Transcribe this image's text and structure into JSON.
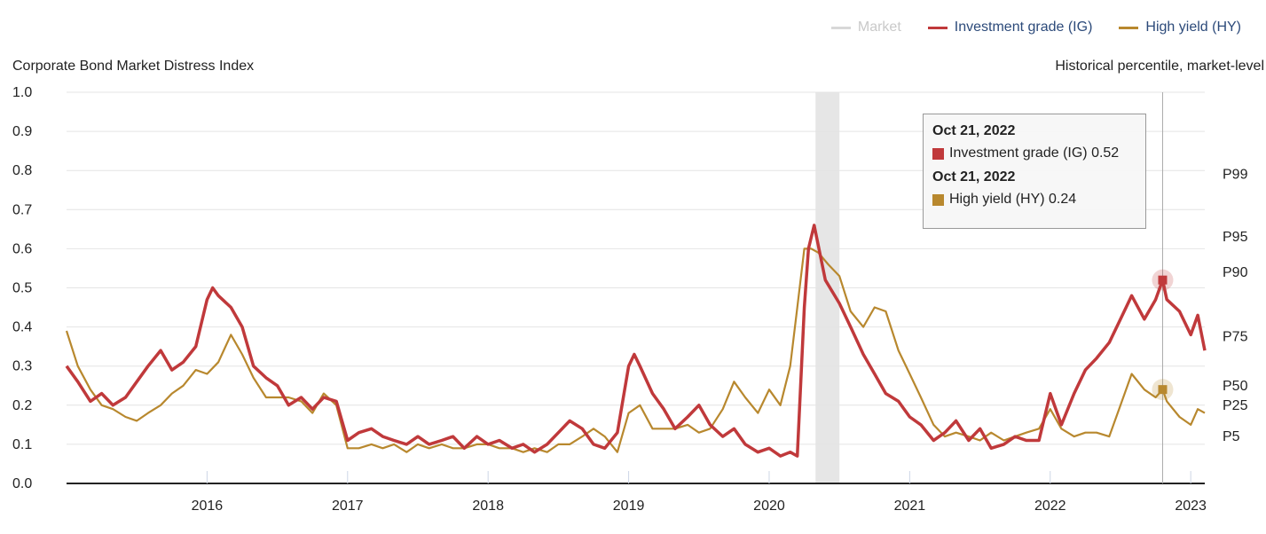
{
  "legend": {
    "market": "Market",
    "ig": "Investment grade (IG)",
    "hy": "High yield (HY)"
  },
  "colors": {
    "ig": "#c0393b",
    "hy": "#b8882e",
    "market": "#d8d8d8",
    "recession": "#e6e6e6"
  },
  "tooltip": {
    "ig_date": "Oct 21, 2022",
    "ig_text": "Investment grade (IG) 0.52",
    "hy_date": "Oct 21, 2022",
    "hy_text": "High yield (HY) 0.24"
  },
  "chart_data": {
    "type": "line",
    "title": "Corporate Bond Market Distress Index",
    "right_axis_title": "Historical percentile, market-level",
    "ylim": [
      0,
      1.0
    ],
    "y_ticks": [
      "0.0",
      "0.1",
      "0.2",
      "0.3",
      "0.4",
      "0.5",
      "0.6",
      "0.7",
      "0.8",
      "0.9",
      "1.0"
    ],
    "xlim": [
      2015.0,
      2023.1
    ],
    "x_ticks": [
      "2016",
      "2017",
      "2018",
      "2019",
      "2020",
      "2021",
      "2022",
      "2023"
    ],
    "percentile_labels": [
      {
        "label": "P99",
        "value": 0.79
      },
      {
        "label": "P95",
        "value": 0.63
      },
      {
        "label": "P90",
        "value": 0.54
      },
      {
        "label": "P75",
        "value": 0.375
      },
      {
        "label": "P50",
        "value": 0.25
      },
      {
        "label": "P25",
        "value": 0.2
      },
      {
        "label": "P5",
        "value": 0.12
      }
    ],
    "shaded_region": [
      2020.33,
      2020.5
    ],
    "hover_x": 2022.8,
    "series": [
      {
        "name": "Investment grade (IG)",
        "x": [
          2015.0,
          2015.08,
          2015.17,
          2015.25,
          2015.33,
          2015.42,
          2015.5,
          2015.58,
          2015.67,
          2015.75,
          2015.83,
          2015.92,
          2016.0,
          2016.04,
          2016.08,
          2016.17,
          2016.25,
          2016.33,
          2016.42,
          2016.5,
          2016.58,
          2016.67,
          2016.75,
          2016.83,
          2016.92,
          2017.0,
          2017.08,
          2017.17,
          2017.25,
          2017.33,
          2017.42,
          2017.5,
          2017.58,
          2017.67,
          2017.75,
          2017.83,
          2017.92,
          2018.0,
          2018.08,
          2018.17,
          2018.25,
          2018.33,
          2018.42,
          2018.5,
          2018.58,
          2018.67,
          2018.75,
          2018.83,
          2018.92,
          2019.0,
          2019.04,
          2019.08,
          2019.17,
          2019.25,
          2019.33,
          2019.42,
          2019.5,
          2019.58,
          2019.67,
          2019.75,
          2019.83,
          2019.92,
          2020.0,
          2020.08,
          2020.15,
          2020.2,
          2020.25,
          2020.28,
          2020.32,
          2020.4,
          2020.5,
          2020.58,
          2020.67,
          2020.75,
          2020.83,
          2020.92,
          2021.0,
          2021.08,
          2021.17,
          2021.25,
          2021.33,
          2021.42,
          2021.5,
          2021.58,
          2021.67,
          2021.75,
          2021.83,
          2021.92,
          2022.0,
          2022.08,
          2022.17,
          2022.25,
          2022.33,
          2022.42,
          2022.5,
          2022.58,
          2022.67,
          2022.75,
          2022.8,
          2022.83,
          2022.92,
          2023.0,
          2023.05,
          2023.1
        ],
        "values": [
          0.3,
          0.26,
          0.21,
          0.23,
          0.2,
          0.22,
          0.26,
          0.3,
          0.34,
          0.29,
          0.31,
          0.35,
          0.47,
          0.5,
          0.48,
          0.45,
          0.4,
          0.3,
          0.27,
          0.25,
          0.2,
          0.22,
          0.19,
          0.22,
          0.21,
          0.11,
          0.13,
          0.14,
          0.12,
          0.11,
          0.1,
          0.12,
          0.1,
          0.11,
          0.12,
          0.09,
          0.12,
          0.1,
          0.11,
          0.09,
          0.1,
          0.08,
          0.1,
          0.13,
          0.16,
          0.14,
          0.1,
          0.09,
          0.13,
          0.3,
          0.33,
          0.3,
          0.23,
          0.19,
          0.14,
          0.17,
          0.2,
          0.15,
          0.12,
          0.14,
          0.1,
          0.08,
          0.09,
          0.07,
          0.08,
          0.07,
          0.45,
          0.6,
          0.66,
          0.52,
          0.46,
          0.4,
          0.33,
          0.28,
          0.23,
          0.21,
          0.17,
          0.15,
          0.11,
          0.13,
          0.16,
          0.11,
          0.14,
          0.09,
          0.1,
          0.12,
          0.11,
          0.11,
          0.23,
          0.15,
          0.23,
          0.29,
          0.32,
          0.36,
          0.42,
          0.48,
          0.42,
          0.47,
          0.52,
          0.47,
          0.44,
          0.38,
          0.43,
          0.34
        ]
      },
      {
        "name": "High yield (HY)",
        "x": [
          2015.0,
          2015.08,
          2015.17,
          2015.25,
          2015.33,
          2015.42,
          2015.5,
          2015.58,
          2015.67,
          2015.75,
          2015.83,
          2015.92,
          2016.0,
          2016.08,
          2016.17,
          2016.25,
          2016.33,
          2016.42,
          2016.5,
          2016.58,
          2016.67,
          2016.75,
          2016.83,
          2016.92,
          2017.0,
          2017.08,
          2017.17,
          2017.25,
          2017.33,
          2017.42,
          2017.5,
          2017.58,
          2017.67,
          2017.75,
          2017.83,
          2017.92,
          2018.0,
          2018.08,
          2018.17,
          2018.25,
          2018.33,
          2018.42,
          2018.5,
          2018.58,
          2018.67,
          2018.75,
          2018.83,
          2018.92,
          2019.0,
          2019.08,
          2019.17,
          2019.25,
          2019.33,
          2019.42,
          2019.5,
          2019.58,
          2019.67,
          2019.75,
          2019.83,
          2019.92,
          2020.0,
          2020.08,
          2020.15,
          2020.2,
          2020.25,
          2020.3,
          2020.35,
          2020.42,
          2020.5,
          2020.58,
          2020.67,
          2020.75,
          2020.83,
          2020.92,
          2021.0,
          2021.08,
          2021.17,
          2021.25,
          2021.33,
          2021.42,
          2021.5,
          2021.58,
          2021.67,
          2021.75,
          2021.83,
          2021.92,
          2022.0,
          2022.08,
          2022.17,
          2022.25,
          2022.33,
          2022.42,
          2022.5,
          2022.58,
          2022.67,
          2022.75,
          2022.8,
          2022.83,
          2022.92,
          2023.0,
          2023.05,
          2023.1
        ],
        "values": [
          0.39,
          0.3,
          0.24,
          0.2,
          0.19,
          0.17,
          0.16,
          0.18,
          0.2,
          0.23,
          0.25,
          0.29,
          0.28,
          0.31,
          0.38,
          0.33,
          0.27,
          0.22,
          0.22,
          0.22,
          0.21,
          0.18,
          0.23,
          0.2,
          0.09,
          0.09,
          0.1,
          0.09,
          0.1,
          0.08,
          0.1,
          0.09,
          0.1,
          0.09,
          0.09,
          0.1,
          0.1,
          0.09,
          0.09,
          0.08,
          0.09,
          0.08,
          0.1,
          0.1,
          0.12,
          0.14,
          0.12,
          0.08,
          0.18,
          0.2,
          0.14,
          0.14,
          0.14,
          0.15,
          0.13,
          0.14,
          0.19,
          0.26,
          0.22,
          0.18,
          0.24,
          0.2,
          0.3,
          0.45,
          0.6,
          0.6,
          0.59,
          0.56,
          0.53,
          0.44,
          0.4,
          0.45,
          0.44,
          0.34,
          0.28,
          0.22,
          0.15,
          0.12,
          0.13,
          0.12,
          0.11,
          0.13,
          0.11,
          0.12,
          0.13,
          0.14,
          0.19,
          0.14,
          0.12,
          0.13,
          0.13,
          0.12,
          0.2,
          0.28,
          0.24,
          0.22,
          0.24,
          0.21,
          0.17,
          0.15,
          0.19,
          0.18
        ]
      }
    ]
  }
}
